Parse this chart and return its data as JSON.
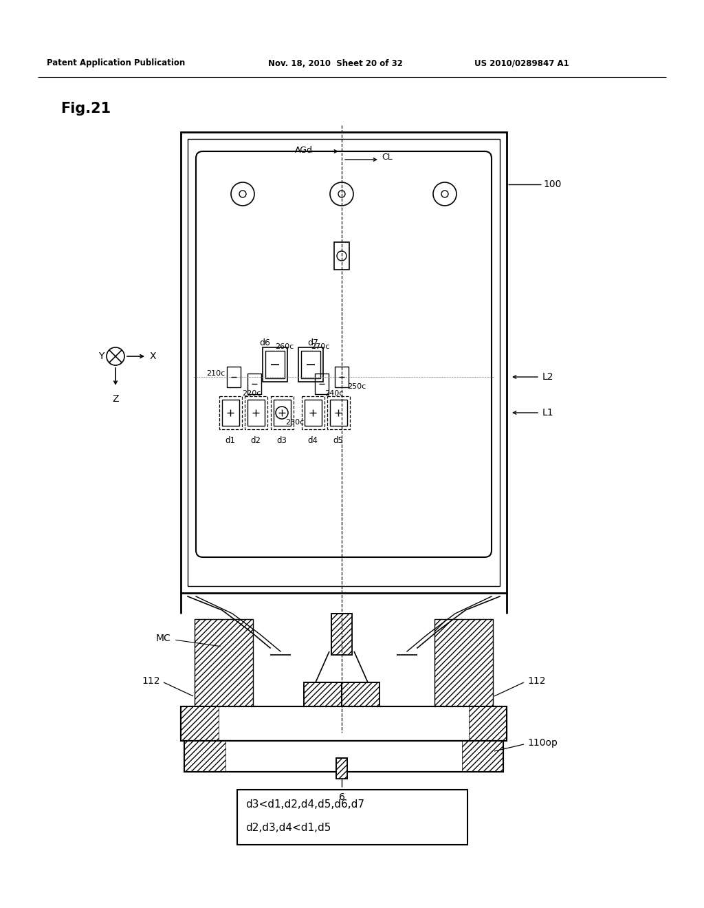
{
  "bg_color": "#ffffff",
  "header_left": "Patent Application Publication",
  "header_mid": "Nov. 18, 2010  Sheet 20 of 32",
  "header_right": "US 2010/0289847 A1",
  "fig_label": "Fig.21",
  "label_100": "100",
  "label_L2": "L2",
  "label_L1": "L1",
  "label_MC": "MC",
  "label_112_left": "112",
  "label_112_right": "112",
  "label_110op": "110op",
  "label_6": "6",
  "label_AGd": "AGd",
  "label_CL": "CL",
  "formula_line1": "d3<d1,d2,d4,d5,d6,d7",
  "formula_line2": "d2,d3,d4<d1,d5"
}
